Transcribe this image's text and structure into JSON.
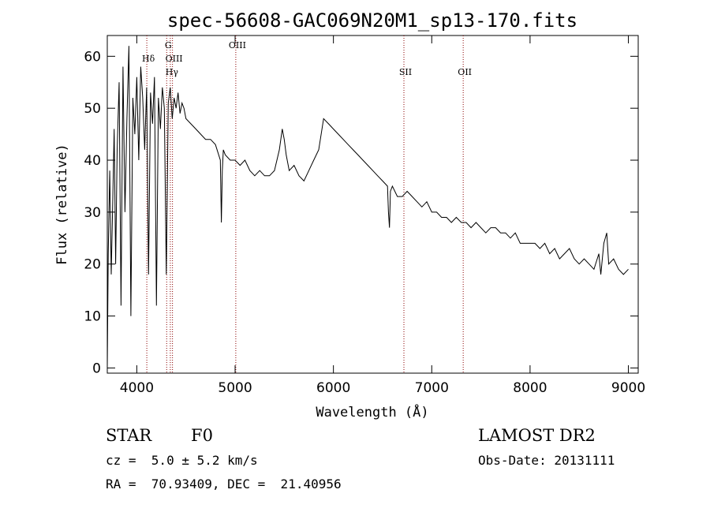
{
  "chart_data": {
    "type": "line",
    "title": "spec-56608-GAC069N20M1_sp13-170.fits",
    "xlabel": "Wavelength (Å)",
    "ylabel": "Flux (relative)",
    "xlim": [
      3700,
      9100
    ],
    "ylim": [
      -1,
      64
    ],
    "xticks": [
      4000,
      5000,
      6000,
      7000,
      8000,
      9000
    ],
    "yticks": [
      0,
      10,
      20,
      30,
      40,
      50,
      60
    ],
    "line_color": "#000000",
    "marker_color": "#8b0000",
    "series": [
      {
        "x": [
          3700,
          3710,
          3725,
          3740,
          3755,
          3770,
          3785,
          3800,
          3820,
          3840,
          3860,
          3880,
          3900,
          3920,
          3940,
          3960,
          3980,
          4000,
          4020,
          4040,
          4060,
          4080,
          4100,
          4120,
          4140,
          4160,
          4180,
          4200,
          4220,
          4240,
          4260,
          4280,
          4300,
          4320,
          4340,
          4360,
          4380,
          4400,
          4420,
          4440,
          4460,
          4480,
          4500,
          4550,
          4600,
          4650,
          4700,
          4750,
          4800,
          4850,
          4860,
          4870,
          4880,
          4900,
          4950,
          5000,
          5050,
          5100,
          5150,
          5200,
          5250,
          5300,
          5350,
          5400,
          5450,
          5480,
          5500,
          5520,
          5550,
          5600,
          5650,
          5700,
          5750,
          5800,
          5850,
          5900,
          5950,
          6000,
          6050,
          6100,
          6150,
          6200,
          6250,
          6300,
          6350,
          6400,
          6450,
          6500,
          6550,
          6560,
          6570,
          6580,
          6600,
          6650,
          6700,
          6750,
          6800,
          6850,
          6900,
          6950,
          7000,
          7050,
          7100,
          7150,
          7200,
          7250,
          7300,
          7350,
          7400,
          7450,
          7500,
          7550,
          7600,
          7650,
          7700,
          7750,
          7800,
          7850,
          7900,
          7950,
          8000,
          8050,
          8100,
          8150,
          8200,
          8250,
          8300,
          8350,
          8400,
          8450,
          8500,
          8550,
          8600,
          8650,
          8700,
          8720,
          8750,
          8780,
          8800,
          8850,
          8900,
          8950,
          9000
        ],
        "y": [
          0,
          22,
          38,
          18,
          32,
          46,
          20,
          42,
          55,
          12,
          58,
          30,
          48,
          62,
          10,
          52,
          45,
          56,
          40,
          58,
          52,
          42,
          54,
          18,
          53,
          47,
          56,
          12,
          52,
          46,
          54,
          50,
          18,
          51,
          54,
          48,
          52,
          50,
          53,
          49,
          51,
          50,
          48,
          47,
          46,
          45,
          44,
          44,
          43,
          40,
          28,
          38,
          42,
          41,
          40,
          40,
          39,
          40,
          38,
          37,
          38,
          37,
          37,
          38,
          42,
          46,
          44,
          41,
          38,
          39,
          37,
          36,
          38,
          40,
          42,
          48,
          47,
          46,
          45,
          44,
          43,
          42,
          41,
          40,
          39,
          38,
          37,
          36,
          35,
          30,
          27,
          34,
          35,
          33,
          33,
          34,
          33,
          32,
          31,
          32,
          30,
          30,
          29,
          29,
          28,
          29,
          28,
          28,
          27,
          28,
          27,
          26,
          27,
          27,
          26,
          26,
          25,
          26,
          24,
          24,
          24,
          24,
          23,
          24,
          22,
          23,
          21,
          22,
          23,
          21,
          20,
          21,
          20,
          19,
          22,
          18,
          24,
          26,
          20,
          21,
          19,
          18,
          19
        ]
      }
    ],
    "annotations": [
      {
        "label": "Hδ",
        "x": 4102,
        "row": 1
      },
      {
        "label": "G",
        "x": 4304,
        "row": 0
      },
      {
        "label": "OIII",
        "x": 4363,
        "row": 1
      },
      {
        "label": "Hγ",
        "x": 4341,
        "row": 2
      },
      {
        "label": "OIII",
        "x": 5007,
        "row": 0
      },
      {
        "label": "SII",
        "x": 6717,
        "row": 3
      },
      {
        "label": "OII",
        "x": 7320,
        "row": 3
      }
    ]
  },
  "info": {
    "class_label": "STAR",
    "subclass_label": "F0",
    "redshift_line": "cz =  5.0 ± 5.2 km/s",
    "coords_line": "RA =  70.93409, DEC =  21.40956",
    "survey_label": "LAMOST DR2",
    "obs_date_line": "Obs-Date: 20131111"
  }
}
